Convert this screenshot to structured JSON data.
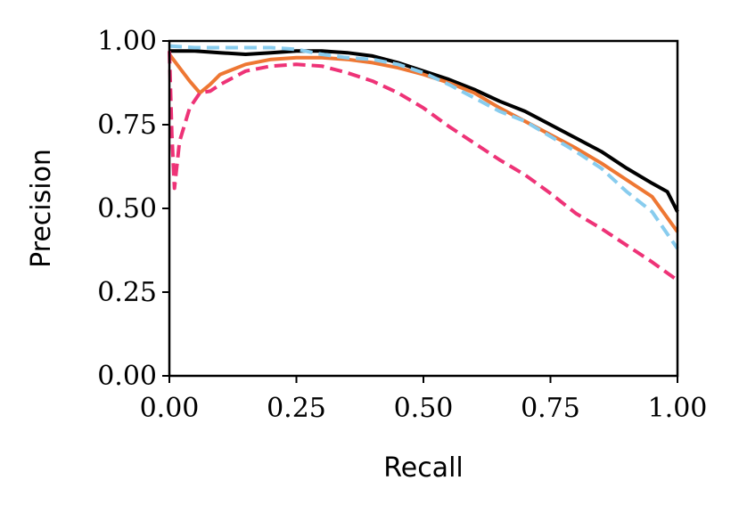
{
  "chart_data": {
    "type": "line",
    "xlabel": "Recall",
    "ylabel": "Precision",
    "xlim": [
      0,
      1
    ],
    "ylim": [
      0,
      1
    ],
    "x_ticks": [
      "0.00",
      "0.25",
      "0.50",
      "0.75",
      "1.00"
    ],
    "y_ticks": [
      "0.00",
      "0.25",
      "0.50",
      "0.75",
      "1.00"
    ],
    "grid": false,
    "legend": "none",
    "series": [
      {
        "color": "#000000",
        "dash": "solid",
        "x": [
          0.0,
          0.05,
          0.1,
          0.15,
          0.2,
          0.25,
          0.3,
          0.35,
          0.4,
          0.45,
          0.5,
          0.55,
          0.6,
          0.65,
          0.7,
          0.75,
          0.8,
          0.85,
          0.9,
          0.95,
          0.98,
          1.0
        ],
        "y": [
          0.97,
          0.97,
          0.965,
          0.96,
          0.965,
          0.97,
          0.97,
          0.965,
          0.955,
          0.935,
          0.91,
          0.885,
          0.855,
          0.82,
          0.79,
          0.75,
          0.71,
          0.67,
          0.62,
          0.575,
          0.55,
          0.49
        ]
      },
      {
        "color": "#ee7733",
        "dash": "solid",
        "x": [
          0.0,
          0.02,
          0.04,
          0.06,
          0.08,
          0.1,
          0.15,
          0.2,
          0.25,
          0.3,
          0.35,
          0.4,
          0.45,
          0.5,
          0.55,
          0.6,
          0.65,
          0.7,
          0.75,
          0.8,
          0.85,
          0.9,
          0.95,
          1.0
        ],
        "y": [
          0.96,
          0.92,
          0.88,
          0.845,
          0.87,
          0.9,
          0.93,
          0.945,
          0.95,
          0.95,
          0.945,
          0.935,
          0.92,
          0.9,
          0.875,
          0.845,
          0.8,
          0.76,
          0.72,
          0.68,
          0.635,
          0.585,
          0.535,
          0.43
        ]
      },
      {
        "color": "#88ccee",
        "dash": "dashed",
        "x": [
          0.0,
          0.05,
          0.1,
          0.15,
          0.2,
          0.25,
          0.3,
          0.35,
          0.4,
          0.45,
          0.5,
          0.55,
          0.6,
          0.65,
          0.7,
          0.75,
          0.8,
          0.85,
          0.9,
          0.95,
          1.0
        ],
        "y": [
          0.985,
          0.98,
          0.98,
          0.98,
          0.98,
          0.975,
          0.96,
          0.95,
          0.945,
          0.93,
          0.905,
          0.87,
          0.83,
          0.79,
          0.76,
          0.715,
          0.67,
          0.62,
          0.55,
          0.49,
          0.38
        ]
      },
      {
        "color": "#ee3377",
        "dash": "dashed",
        "x": [
          0.0,
          0.005,
          0.01,
          0.02,
          0.04,
          0.06,
          0.08,
          0.1,
          0.15,
          0.2,
          0.25,
          0.3,
          0.35,
          0.4,
          0.45,
          0.5,
          0.55,
          0.6,
          0.65,
          0.7,
          0.75,
          0.8,
          0.85,
          0.9,
          0.95,
          1.0
        ],
        "y": [
          0.97,
          0.72,
          0.56,
          0.7,
          0.8,
          0.845,
          0.85,
          0.87,
          0.91,
          0.925,
          0.93,
          0.925,
          0.905,
          0.88,
          0.845,
          0.8,
          0.745,
          0.695,
          0.645,
          0.6,
          0.545,
          0.485,
          0.44,
          0.39,
          0.34,
          0.285
        ]
      }
    ]
  }
}
